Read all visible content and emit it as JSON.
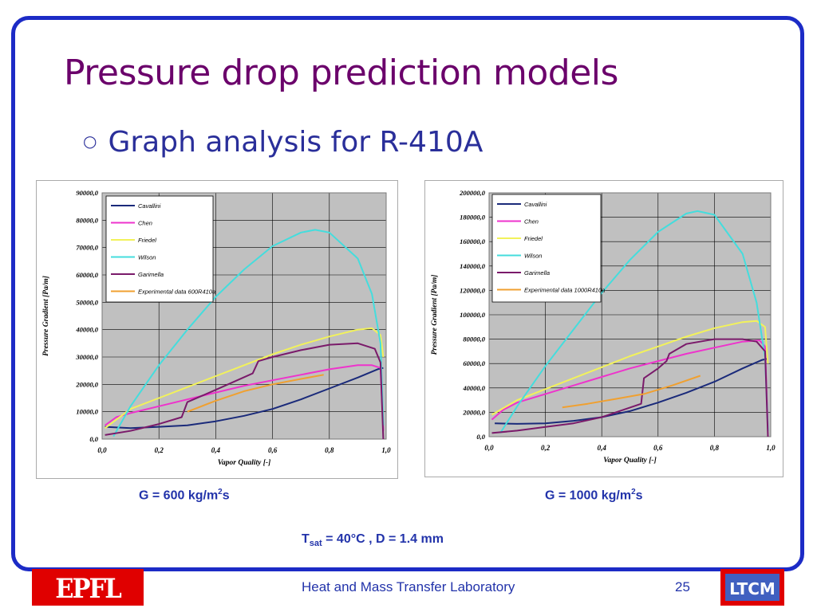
{
  "slide": {
    "title": "Pressure drop prediction models",
    "bullet": "Graph analysis for R-410A",
    "caption_left_prefix": "G = 600 kg/m",
    "caption_left_sup": "2",
    "caption_left_suffix": "s",
    "caption_right_prefix": "G = 1000 kg/m",
    "caption_right_sup": "2",
    "caption_right_suffix": "s",
    "cond_T": "T",
    "cond_sub": "sat",
    "cond_rest": " = 40°C , D = 1.4 mm",
    "footer_lab": "Heat and Mass Transfer Laboratory",
    "page_number": "25",
    "logo_left_text": "EPFL",
    "logo_right_text": "LTCM"
  },
  "colors": {
    "frame": "#1c2bc6",
    "title": "#6b006b",
    "text": "#2233aa",
    "plot_bg": "#c0c0c0",
    "Cavallini": "#1a2a7a",
    "Chen": "#ee33cc",
    "Friedel": "#f2f25a",
    "Wilson": "#44dddd",
    "Garimella": "#7a1a6a",
    "Experimental": "#f0a030"
  },
  "chart_data": [
    {
      "type": "line",
      "xlabel": "Vapor Quality [-]",
      "ylabel": "Pressure Gradient [Pa/m]",
      "xlim": [
        0,
        1
      ],
      "ylim": [
        0,
        90000
      ],
      "x_ticks": [
        "0,0",
        "0,2",
        "0,4",
        "0,6",
        "0,8",
        "1,0"
      ],
      "y_ticks": [
        "0,0",
        "10000,0",
        "20000,0",
        "30000,0",
        "40000,0",
        "50000,0",
        "60000,0",
        "70000,0",
        "80000,0",
        "90000,0"
      ],
      "grid": true,
      "legend": "top-left",
      "series": [
        {
          "name": "Cavallini",
          "x": [
            0.01,
            0.1,
            0.2,
            0.3,
            0.4,
            0.5,
            0.6,
            0.7,
            0.8,
            0.9,
            0.97,
            0.99
          ],
          "y": [
            4500,
            4000,
            4500,
            5000,
            6500,
            8500,
            11000,
            14500,
            18500,
            22500,
            25500,
            26000
          ]
        },
        {
          "name": "Chen",
          "x": [
            0.01,
            0.05,
            0.1,
            0.2,
            0.3,
            0.4,
            0.5,
            0.6,
            0.7,
            0.8,
            0.9,
            0.95,
            0.98,
            0.99
          ],
          "y": [
            5000,
            8000,
            9500,
            12000,
            14500,
            17000,
            19500,
            21500,
            23500,
            25500,
            27000,
            27000,
            26000,
            3000
          ]
        },
        {
          "name": "Friedel",
          "x": [
            0.01,
            0.1,
            0.2,
            0.3,
            0.4,
            0.5,
            0.6,
            0.7,
            0.8,
            0.9,
            0.95,
            0.98,
            0.99
          ],
          "y": [
            4000,
            11000,
            15000,
            19000,
            23000,
            27000,
            31000,
            34500,
            37500,
            40000,
            40500,
            38000,
            30000
          ]
        },
        {
          "name": "Wilson",
          "x": [
            0.04,
            0.1,
            0.2,
            0.3,
            0.4,
            0.5,
            0.6,
            0.7,
            0.75,
            0.8,
            0.9,
            0.95,
            0.98,
            0.99
          ],
          "y": [
            1000,
            12000,
            27000,
            40000,
            52000,
            62000,
            70500,
            75500,
            76500,
            75500,
            66000,
            53000,
            35000,
            5000
          ]
        },
        {
          "name": "Garimella",
          "x": [
            0.01,
            0.1,
            0.2,
            0.28,
            0.3,
            0.4,
            0.53,
            0.55,
            0.6,
            0.7,
            0.8,
            0.9,
            0.96,
            0.98,
            0.99
          ],
          "y": [
            1500,
            3000,
            5500,
            8000,
            13500,
            18000,
            24000,
            28500,
            30000,
            32500,
            34500,
            35000,
            33000,
            28000,
            0
          ]
        },
        {
          "name": "Experimental data 600R410a",
          "x": [
            0.3,
            0.4,
            0.5,
            0.6,
            0.7,
            0.78
          ],
          "y": [
            10000,
            14000,
            17500,
            20000,
            22000,
            23500
          ]
        }
      ]
    },
    {
      "type": "line",
      "xlabel": "Vapor Quality [-]",
      "ylabel": "Pressure Gradient [Pa/m]",
      "xlim": [
        0,
        1
      ],
      "ylim": [
        0,
        200000
      ],
      "x_ticks": [
        "0,0",
        "0,2",
        "0,4",
        "0,6",
        "0,8",
        "1,0"
      ],
      "y_ticks": [
        "0,0",
        "20000,0",
        "40000,0",
        "60000,0",
        "80000,0",
        "100000,0",
        "120000,0",
        "140000,0",
        "160000,0",
        "180000,0",
        "200000,0"
      ],
      "grid": true,
      "legend": "top-left",
      "series": [
        {
          "name": "Cavallini",
          "x": [
            0.02,
            0.1,
            0.2,
            0.3,
            0.4,
            0.5,
            0.6,
            0.7,
            0.8,
            0.9,
            0.97,
            0.99
          ],
          "y": [
            11000,
            10500,
            11000,
            13000,
            16000,
            21000,
            28000,
            36000,
            45000,
            56000,
            63000,
            64000
          ]
        },
        {
          "name": "Chen",
          "x": [
            0.01,
            0.05,
            0.1,
            0.2,
            0.3,
            0.4,
            0.5,
            0.6,
            0.7,
            0.8,
            0.9,
            0.96,
            0.98,
            0.99
          ],
          "y": [
            14000,
            22000,
            28000,
            35000,
            42000,
            49000,
            56000,
            62000,
            68000,
            73000,
            78000,
            79000,
            74000,
            5000
          ]
        },
        {
          "name": "Friedel",
          "x": [
            0.01,
            0.1,
            0.2,
            0.3,
            0.4,
            0.5,
            0.6,
            0.7,
            0.8,
            0.9,
            0.95,
            0.98,
            0.99
          ],
          "y": [
            18000,
            30000,
            39000,
            48000,
            57000,
            66000,
            74000,
            82000,
            89000,
            94000,
            95000,
            90000,
            60000
          ]
        },
        {
          "name": "Wilson",
          "x": [
            0.04,
            0.1,
            0.2,
            0.3,
            0.4,
            0.5,
            0.6,
            0.7,
            0.74,
            0.8,
            0.9,
            0.95,
            0.98,
            0.99
          ],
          "y": [
            3000,
            25000,
            58000,
            88000,
            118000,
            145000,
            168000,
            183000,
            185000,
            182000,
            150000,
            110000,
            65000,
            5000
          ]
        },
        {
          "name": "Garimella",
          "x": [
            0.01,
            0.1,
            0.2,
            0.3,
            0.4,
            0.54,
            0.55,
            0.6,
            0.63,
            0.64,
            0.7,
            0.8,
            0.9,
            0.95,
            0.98,
            0.99
          ],
          "y": [
            3000,
            5000,
            8000,
            11000,
            16000,
            27000,
            48000,
            56000,
            62000,
            68000,
            76000,
            80000,
            80000,
            78000,
            70000,
            0
          ]
        },
        {
          "name": "Experimental data 1000R410a",
          "x": [
            0.26,
            0.35,
            0.45,
            0.55,
            0.65,
            0.75
          ],
          "y": [
            24000,
            27000,
            31000,
            35000,
            42000,
            50000
          ]
        }
      ]
    }
  ]
}
